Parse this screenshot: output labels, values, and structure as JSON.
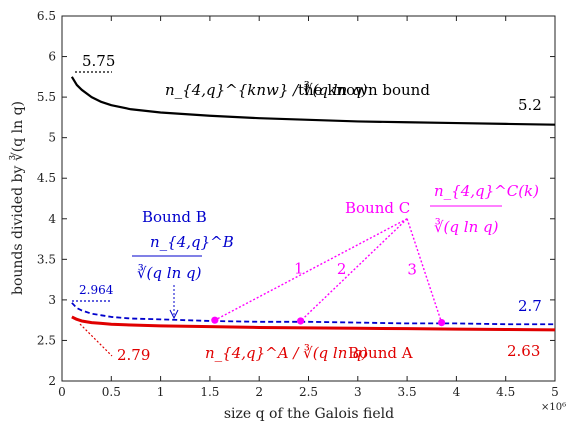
{
  "chart_data": {
    "type": "line",
    "title": "",
    "xlabel": "size q of the Galois field",
    "ylabel": "bounds divided by ∛(q ln q)",
    "xlim": [
      0,
      5000000
    ],
    "ylim": [
      2,
      6.5
    ],
    "x_exponent": "×10⁶",
    "x_tick_labels": [
      "0",
      "0.5",
      "1",
      "1.5",
      "2",
      "2.5",
      "3",
      "3.5",
      "4",
      "4.5",
      "5"
    ],
    "y_tick_labels": [
      "2",
      "2.5",
      "3",
      "3.5",
      "4",
      "4.5",
      "5",
      "5.5",
      "6",
      "6.5"
    ],
    "grid": false,
    "colors": {
      "known": "#000000",
      "B": "#0000cc",
      "C": "#ff00ff",
      "A": "#e00000"
    },
    "series": [
      {
        "key": "known",
        "x": [
          100000,
          150000,
          200000,
          300000,
          400000,
          500000,
          700000,
          1000000,
          1500000,
          2000000,
          2500000,
          3000000,
          3500000,
          4000000,
          4500000,
          5000000
        ],
        "y": [
          5.75,
          5.65,
          5.59,
          5.5,
          5.44,
          5.4,
          5.35,
          5.31,
          5.27,
          5.24,
          5.22,
          5.2,
          5.19,
          5.18,
          5.17,
          5.16
        ]
      },
      {
        "key": "B",
        "x": [
          100000,
          150000,
          200000,
          300000,
          400000,
          500000,
          700000,
          1000000,
          1500000,
          2000000,
          2500000,
          3000000,
          3500000,
          4000000,
          4500000,
          5000000
        ],
        "y": [
          2.964,
          2.9,
          2.87,
          2.83,
          2.81,
          2.79,
          2.77,
          2.76,
          2.74,
          2.73,
          2.73,
          2.72,
          2.71,
          2.71,
          2.7,
          2.7
        ]
      },
      {
        "key": "A",
        "x": [
          100000,
          150000,
          200000,
          300000,
          400000,
          500000,
          700000,
          1000000,
          1500000,
          2000000,
          2500000,
          3000000,
          3500000,
          4000000,
          4500000,
          5000000
        ],
        "y": [
          2.79,
          2.76,
          2.74,
          2.72,
          2.71,
          2.7,
          2.69,
          2.68,
          2.67,
          2.66,
          2.655,
          2.65,
          2.645,
          2.64,
          2.635,
          2.63
        ]
      }
    ],
    "c_points": {
      "x": [
        1550000,
        2420000,
        3850000
      ],
      "y": [
        2.75,
        2.74,
        2.72
      ],
      "labels": [
        "1",
        "2",
        "3"
      ]
    },
    "annotations": {
      "known_start": "5.75",
      "known_end": "5.2",
      "known_formula": "n_{4,q}^{knw} / ∛(q ln q)",
      "known_text": "the known bound",
      "b_start": "2.964",
      "b_end": "2.7",
      "bound_b": "Bound B",
      "b_frac_num": "n_{4,q}^B",
      "bound_c": "Bound C",
      "c_frac_num": "n_{4,q}^C(k)",
      "a_start": "2.79",
      "a_end": "2.63",
      "a_formula": "n_{4,q}^A / ∛(q ln q)",
      "bound_a": "Bound A",
      "frac_den": "∛(q ln q)"
    }
  }
}
